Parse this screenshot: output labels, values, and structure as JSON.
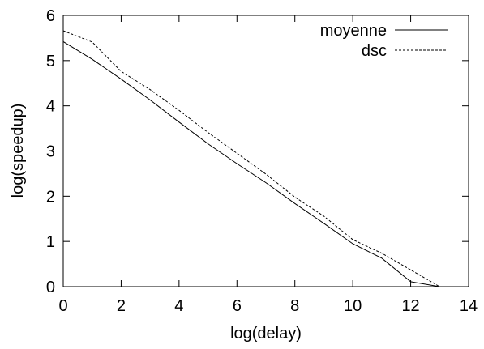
{
  "chart_data": {
    "type": "line",
    "xlabel": "log(delay)",
    "ylabel": "log(speedup)",
    "xlim": [
      0,
      14
    ],
    "ylim": [
      0,
      6
    ],
    "xticks": [
      0,
      2,
      4,
      6,
      8,
      10,
      12,
      14
    ],
    "yticks": [
      0,
      1,
      2,
      3,
      4,
      5,
      6
    ],
    "grid": false,
    "legend": "top-right",
    "series": [
      {
        "name": "moyenne",
        "style": "solid",
        "color": "#000000",
        "x": [
          0,
          1,
          2,
          3,
          4,
          5,
          6,
          7,
          8,
          9,
          10,
          11,
          12,
          13,
          14
        ],
        "y": [
          5.42,
          5.03,
          4.59,
          4.13,
          3.64,
          3.16,
          2.72,
          2.3,
          1.84,
          1.4,
          0.95,
          0.63,
          0.11,
          0.0,
          0.0
        ]
      },
      {
        "name": "dsc",
        "style": "dashed",
        "color": "#000000",
        "x": [
          0,
          1,
          2,
          3,
          4,
          5,
          6,
          7,
          8,
          9,
          10,
          11,
          12,
          13,
          14
        ],
        "y": [
          5.66,
          5.41,
          4.76,
          4.36,
          3.9,
          3.41,
          2.95,
          2.49,
          1.98,
          1.56,
          1.04,
          0.74,
          0.37,
          0.0,
          0.0
        ]
      }
    ]
  }
}
